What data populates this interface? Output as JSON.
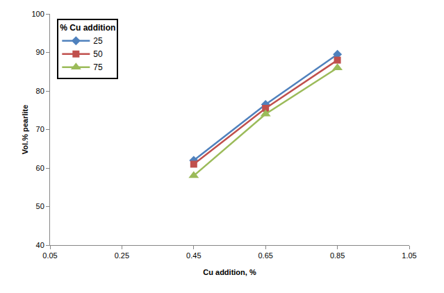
{
  "chart_data": {
    "type": "line",
    "x_label": "Cu addition, %",
    "y_label": "Vol.% pearlite",
    "legend_title": "% Cu addition",
    "x": [
      0.45,
      0.65,
      0.85
    ],
    "series": [
      {
        "name": "25",
        "color": "#4F81BD",
        "marker": "diamond",
        "values": [
          62,
          76.5,
          89.5
        ]
      },
      {
        "name": "50",
        "color": "#C0504D",
        "marker": "square",
        "values": [
          61,
          75.5,
          88
        ]
      },
      {
        "name": "75",
        "color": "#9BBB59",
        "marker": "triangle",
        "values": [
          58,
          74,
          86
        ]
      }
    ],
    "xlim": [
      0.05,
      1.05
    ],
    "xticks": [
      0.05,
      0.25,
      0.45,
      0.65,
      0.85,
      1.05
    ],
    "ylim": [
      40,
      100
    ],
    "yticks": [
      40,
      50,
      60,
      70,
      80,
      90,
      100
    ],
    "grid": false,
    "legend": "upper left"
  }
}
